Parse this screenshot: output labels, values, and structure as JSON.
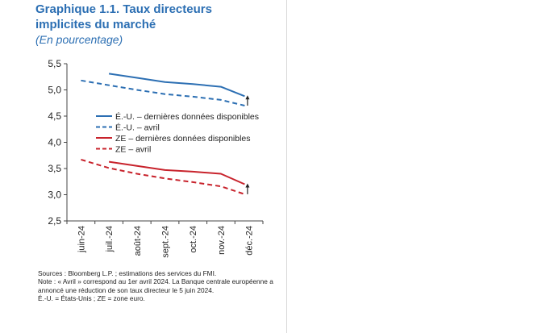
{
  "header": {
    "title": "Graphique 1.1. Taux directeurs implicites du marché",
    "subtitle": "(En pourcentage)"
  },
  "notes": {
    "sources": "Sources : Bloomberg L.P. ; estimations des services du FMI.",
    "note": "Note : « Avril » correspond au 1er avril 2024. La Banque centrale européenne a annoncé une réduction de son taux directeur le 5 juin 2024.",
    "abbrev": "É.-U. = États-Unis ; ZE = zone euro."
  },
  "colors": {
    "us": "#2c6fb3",
    "ze": "#c8232c",
    "axis": "#444444"
  },
  "chart_data": {
    "type": "line",
    "categories": [
      "juin-24",
      "juil.-24",
      "août-24",
      "sept.-24",
      "oct.-24",
      "nov.-24",
      "déc.-24"
    ],
    "ylim": [
      2.5,
      5.5
    ],
    "yticks": [
      2.5,
      3.0,
      3.5,
      4.0,
      4.5,
      5.0,
      5.5
    ],
    "ytick_labels": [
      "2,5",
      "3,0",
      "3,5",
      "4,0",
      "4,5",
      "5,0",
      "5,5"
    ],
    "grid": false,
    "legend_position": "middle-left",
    "series": [
      {
        "name": "É.-U. – dernières données disponibles",
        "color": "#2c6fb3",
        "dash": false,
        "points": [
          [
            1.0,
            5.31
          ],
          [
            2.0,
            5.23
          ],
          [
            3.0,
            5.15
          ],
          [
            4.0,
            5.11
          ],
          [
            5.0,
            5.06
          ],
          [
            5.85,
            4.88
          ]
        ]
      },
      {
        "name": "É.-U. – avril",
        "color": "#2c6fb3",
        "dash": true,
        "points": [
          [
            0.0,
            5.18
          ],
          [
            1.0,
            5.09
          ],
          [
            2.0,
            5.0
          ],
          [
            3.0,
            4.92
          ],
          [
            4.0,
            4.87
          ],
          [
            5.0,
            4.81
          ],
          [
            5.85,
            4.7
          ]
        ]
      },
      {
        "name": "ZE – dernières données disponibles",
        "color": "#c8232c",
        "dash": false,
        "points": [
          [
            1.0,
            3.63
          ],
          [
            2.0,
            3.55
          ],
          [
            3.0,
            3.47
          ],
          [
            4.0,
            3.44
          ],
          [
            5.0,
            3.4
          ],
          [
            5.85,
            3.2
          ]
        ]
      },
      {
        "name": "ZE – avril",
        "color": "#c8232c",
        "dash": true,
        "points": [
          [
            0.0,
            3.67
          ],
          [
            1.0,
            3.51
          ],
          [
            2.0,
            3.4
          ],
          [
            3.0,
            3.31
          ],
          [
            4.0,
            3.24
          ],
          [
            5.0,
            3.16
          ],
          [
            5.85,
            3.01
          ]
        ]
      }
    ],
    "arrows": [
      {
        "x": 5.95,
        "from": 4.7,
        "to": 4.88,
        "color": "#222222"
      },
      {
        "x": 5.95,
        "from": 3.01,
        "to": 3.2,
        "color": "#222222"
      }
    ]
  }
}
